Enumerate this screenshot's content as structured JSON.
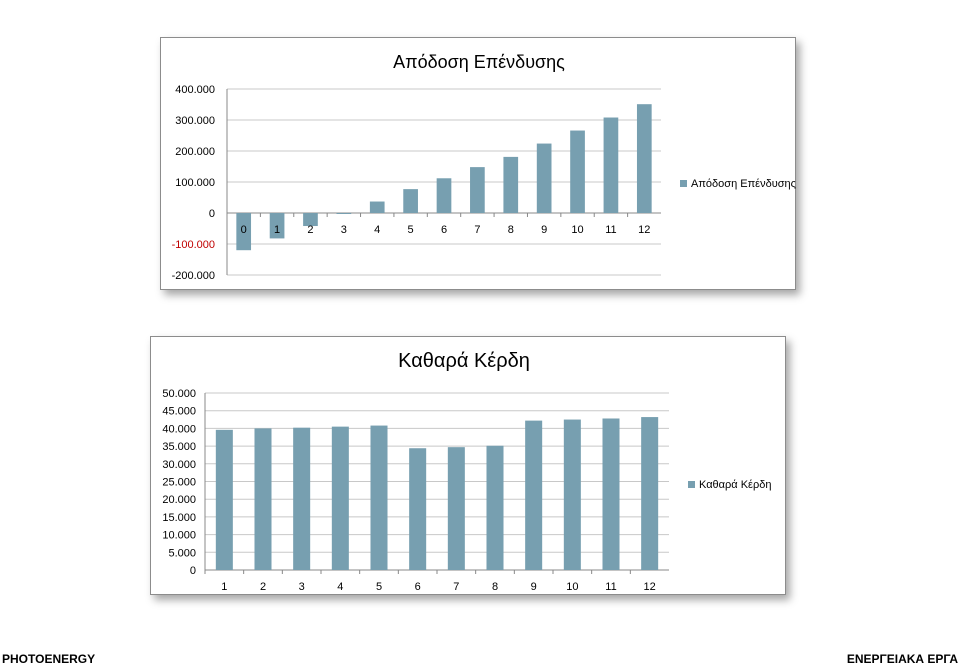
{
  "chart_data": [
    {
      "type": "bar",
      "title": "Απόδοση Επένδυσης",
      "categories": [
        "0",
        "1",
        "2",
        "3",
        "4",
        "5",
        "6",
        "7",
        "8",
        "9",
        "10",
        "11",
        "12"
      ],
      "series": [
        {
          "name": "Απόδοση Επένδυσης",
          "values": [
            -120000,
            -82000,
            -42000,
            -3000,
            37000,
            77000,
            112000,
            148000,
            181000,
            224000,
            266000,
            308000,
            351000
          ]
        }
      ],
      "yticks": [
        "400.000",
        "300.000",
        "200.000",
        "100.000",
        "0",
        "-100.000",
        "-200.000"
      ],
      "ylim": [
        -200000,
        400000
      ],
      "negative_tick_color": "#c00000",
      "bar_color": "#779fb0",
      "grid": true,
      "legend": "right"
    },
    {
      "type": "bar",
      "title": "Καθαρά Κέρδη",
      "categories": [
        "1",
        "2",
        "3",
        "4",
        "5",
        "6",
        "7",
        "8",
        "9",
        "10",
        "11",
        "12"
      ],
      "series": [
        {
          "name": "Καθαρά Κέρδη",
          "values": [
            39600,
            40000,
            40200,
            40500,
            40800,
            34400,
            34700,
            35100,
            42200,
            42500,
            42800,
            43200
          ]
        }
      ],
      "yticks": [
        "50.000",
        "45.000",
        "40.000",
        "35.000",
        "30.000",
        "25.000",
        "20.000",
        "15.000",
        "10.000",
        "5.000",
        "0"
      ],
      "ylim": [
        0,
        50000
      ],
      "bar_color": "#779fb0",
      "grid": true,
      "legend": "right"
    }
  ],
  "footer": {
    "left": "PHOTOENERGY",
    "right": "ΕΝΕΡΓΕΙΑΚΑ ΕΡΓΑ"
  }
}
